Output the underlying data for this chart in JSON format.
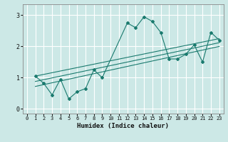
{
  "title": "",
  "xlabel": "Humidex (Indice chaleur)",
  "ylabel": "",
  "xlim": [
    -0.5,
    23.5
  ],
  "ylim": [
    -0.15,
    3.35
  ],
  "xticks": [
    0,
    1,
    2,
    3,
    4,
    5,
    6,
    7,
    8,
    9,
    10,
    11,
    12,
    13,
    14,
    15,
    16,
    17,
    18,
    19,
    20,
    21,
    22,
    23
  ],
  "yticks": [
    0,
    1,
    2,
    3
  ],
  "bg_color": "#cce8e6",
  "grid_color": "#ffffff",
  "line_color": "#1a7a6e",
  "main_line_x": [
    1,
    2,
    3,
    4,
    5,
    6,
    7,
    8,
    9,
    12,
    13,
    14,
    15,
    16,
    17,
    18,
    19,
    20,
    21,
    22,
    23
  ],
  "main_line_y": [
    1.05,
    0.82,
    0.45,
    0.95,
    0.32,
    0.55,
    0.65,
    1.25,
    1.0,
    2.75,
    2.6,
    2.95,
    2.8,
    2.45,
    1.6,
    1.6,
    1.75,
    2.05,
    1.5,
    2.45,
    2.2
  ],
  "trend1_x": [
    1,
    23
  ],
  "trend1_y": [
    1.05,
    2.25
  ],
  "trend2_x": [
    1,
    23
  ],
  "trend2_y": [
    0.88,
    2.12
  ],
  "trend3_x": [
    1,
    23
  ],
  "trend3_y": [
    0.72,
    2.0
  ]
}
